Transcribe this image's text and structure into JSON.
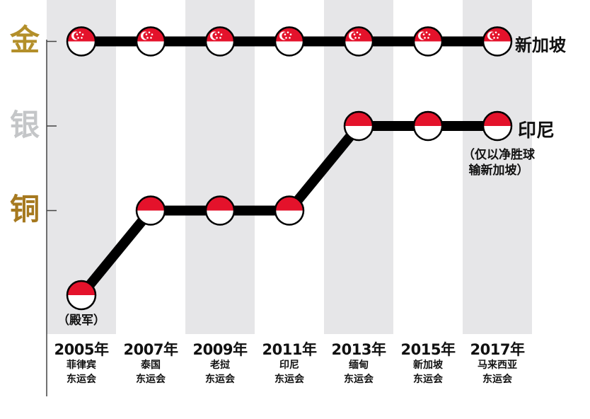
{
  "medals": [
    {
      "label": "金",
      "level": 3,
      "color": "#b38f2a"
    },
    {
      "label": "银",
      "level": 2,
      "color": "#c4c6c8"
    },
    {
      "label": "铜",
      "level": 1,
      "color": "#a6791f"
    }
  ],
  "chart_data": {
    "type": "line",
    "categories": [
      "2005年",
      "2007年",
      "2009年",
      "2011年",
      "2013年",
      "2015年",
      "2017年"
    ],
    "games": [
      [
        "菲律宾",
        "东运会"
      ],
      [
        "泰国",
        "东运会"
      ],
      [
        "老挝",
        "东运会"
      ],
      [
        "印尼",
        "东运会"
      ],
      [
        "缅甸",
        "东运会"
      ],
      [
        "新加坡",
        "东运会"
      ],
      [
        "马来西亚",
        "东运会"
      ]
    ],
    "y_levels": {
      "0": "殿军",
      "1": "铜",
      "2": "银",
      "3": "金"
    },
    "series": [
      {
        "name": "新加坡",
        "values": [
          3,
          3,
          3,
          3,
          3,
          3,
          3
        ],
        "flag": "singapore"
      },
      {
        "name": "印尼",
        "values": [
          0,
          1,
          1,
          1,
          2,
          2,
          2
        ],
        "flag": "indonesia"
      }
    ],
    "annotations": {
      "fourth_place": "（殿军）",
      "indonesia_note_line1": "（仅以净胜球",
      "indonesia_note_line2": "输新加坡）"
    },
    "grid": false
  },
  "colors": {
    "line": "#000000",
    "band": "#e6e6e8",
    "flag_red": "#e4122b",
    "flag_white": "#ffffff",
    "axis": "#444444"
  }
}
